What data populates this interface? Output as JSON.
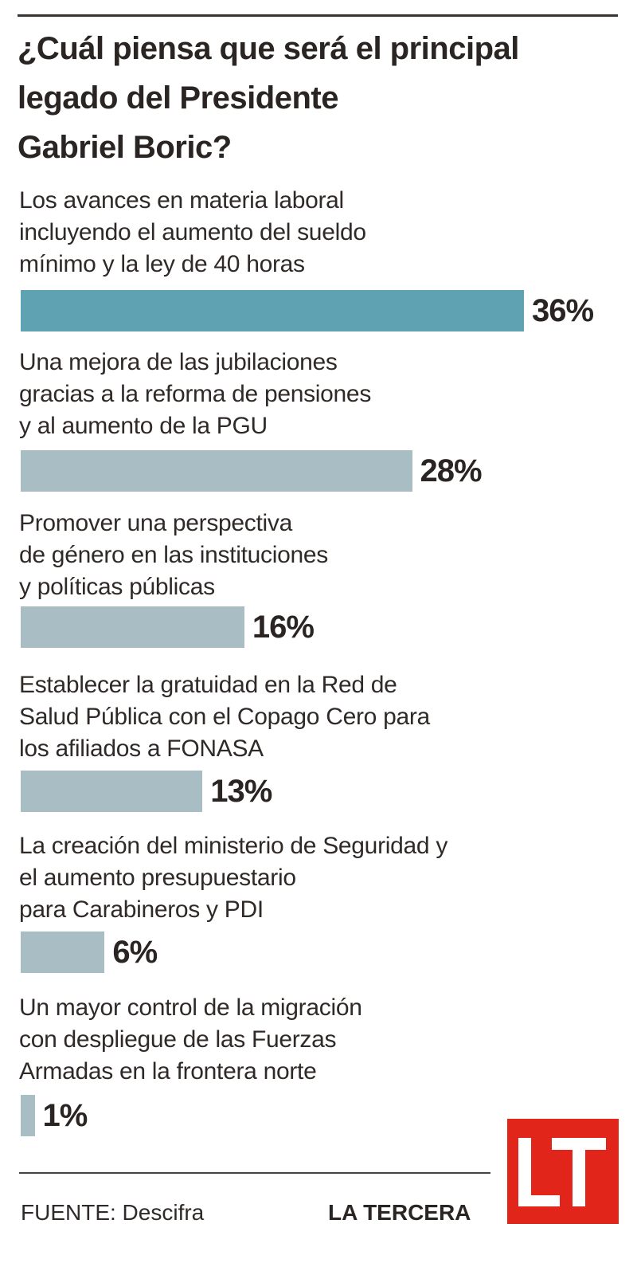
{
  "title": "¿Cuál piensa que será el principal\nlegado del Presidente\nGabriel Boric?",
  "chart_data": {
    "type": "bar",
    "orientation": "horizontal",
    "categories": [
      "Los avances en materia laboral\nincluyendo  el aumento del sueldo\nmínimo y la ley de 40 horas",
      "Una mejora de las jubilaciones\ngracias a la reforma de pensiones\ny al aumento de la PGU",
      "Promover una perspectiva\nde género en las instituciones\ny políticas públicas",
      "Establecer la gratuidad en la Red de\nSalud Pública con el Copago Cero para\nlos afiliados a FONASA",
      "La creación del ministerio de Seguridad y\nel aumento presupuestario\npara Carabineros y PDI",
      "Un mayor control de la migración\ncon despliegue de las Fuerzas\nArmadas en la frontera norte"
    ],
    "values": [
      36,
      28,
      16,
      13,
      6,
      1
    ],
    "value_labels": [
      "36%",
      "28%",
      "16%",
      "13%",
      "6%",
      "1%"
    ],
    "colors": [
      "#5fa3b3",
      "#a9bec4",
      "#a9bec4",
      "#a9bec4",
      "#a9bec4",
      "#a9bec4"
    ],
    "xlim": [
      0,
      36
    ],
    "grid": false,
    "legend": "none"
  },
  "footer": {
    "source": "FUENTE: Descifra",
    "brand": "LA TERCERA",
    "logo_text": "LT",
    "logo_color": "#e1251b"
  }
}
